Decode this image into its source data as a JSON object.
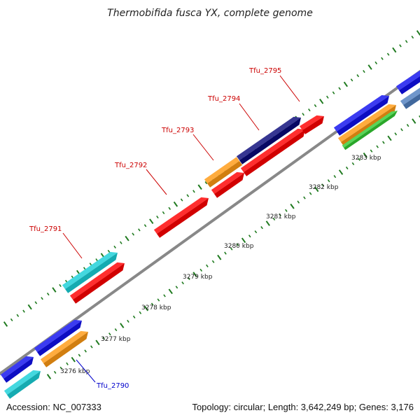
{
  "title": "Thermobifida fusca YX, complete genome",
  "footer": {
    "accession": "Accession: NC_007333",
    "summary": "Topology: circular; Length: 3,642,249 bp; Genes: 3,176"
  },
  "colors": {
    "backbone": "#888888",
    "tick_major": "#1f7a1f",
    "tick_minor": "#1f7a1f",
    "label_red": "#cc0000",
    "label_blue": "#0000cc",
    "red": "#ff0000",
    "blue": "#1010ee",
    "navy": "#0a0a7a",
    "orange": "#ff9a14",
    "cyan": "#1ad0d8",
    "green": "#33cc33",
    "steelblue": "#4f7fbf"
  },
  "ticks": [
    {
      "label": "3276 kbp"
    },
    {
      "label": "3277 kbp"
    },
    {
      "label": "3278 kbp"
    },
    {
      "label": "3279 kbp"
    },
    {
      "label": "3280 kbp"
    },
    {
      "label": "3281 kbp"
    },
    {
      "label": "3282 kbp"
    },
    {
      "label": "3283 kbp"
    }
  ],
  "gene_labels": [
    {
      "name": "Tfu_2790",
      "color": "label_blue"
    },
    {
      "name": "Tfu_2791",
      "color": "label_red"
    },
    {
      "name": "Tfu_2792",
      "color": "label_red"
    },
    {
      "name": "Tfu_2793",
      "color": "label_red"
    },
    {
      "name": "Tfu_2794",
      "color": "label_red"
    },
    {
      "name": "Tfu_2795",
      "color": "label_red"
    }
  ],
  "features": [
    {
      "id": "cyan-a",
      "color": "cyan"
    },
    {
      "id": "blue-a",
      "color": "blue"
    },
    {
      "id": "orange-a",
      "color": "orange"
    },
    {
      "id": "blue-b",
      "color": "blue"
    },
    {
      "id": "cyan-tfu-2791",
      "color": "cyan"
    },
    {
      "id": "red-a",
      "color": "red"
    },
    {
      "id": "red-tfu-2792",
      "color": "red"
    },
    {
      "id": "orange-tfu-2793",
      "color": "orange"
    },
    {
      "id": "red-b",
      "color": "red"
    },
    {
      "id": "navy-tfu-2794",
      "color": "navy"
    },
    {
      "id": "red-c",
      "color": "red"
    },
    {
      "id": "red-tfu-2795",
      "color": "red"
    },
    {
      "id": "blue-c",
      "color": "blue"
    },
    {
      "id": "orange-b",
      "color": "orange"
    },
    {
      "id": "green-a",
      "color": "green"
    },
    {
      "id": "blue-d",
      "color": "blue"
    },
    {
      "id": "steelblue-a",
      "color": "steelblue"
    }
  ]
}
